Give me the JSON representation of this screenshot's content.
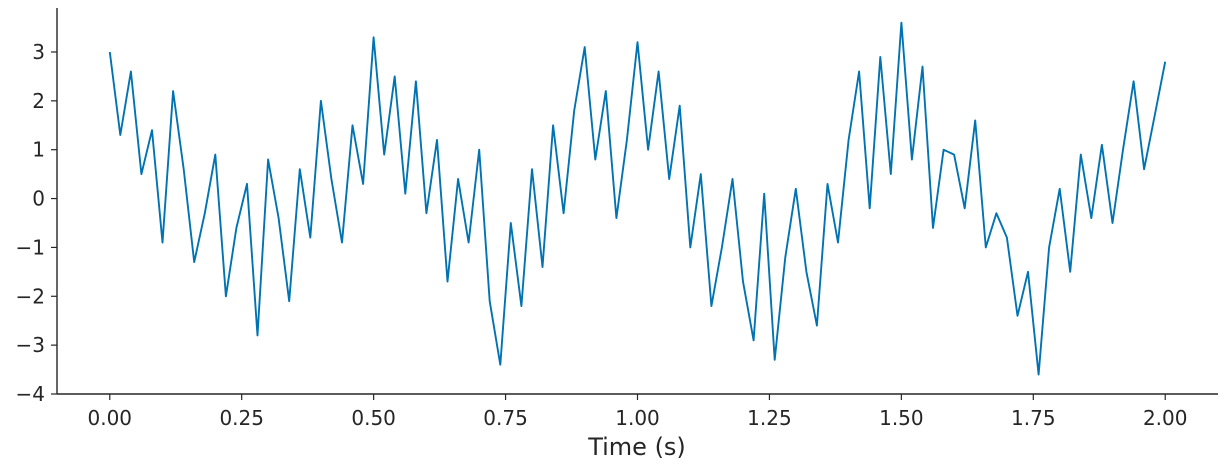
{
  "chart_data": {
    "type": "line",
    "title": "",
    "xlabel": "Time (s)",
    "ylabel": "",
    "xlim": [
      -0.1,
      2.1
    ],
    "ylim": [
      -4,
      3.9
    ],
    "xticks": [
      0.0,
      0.25,
      0.5,
      0.75,
      1.0,
      1.25,
      1.5,
      1.75,
      2.0
    ],
    "xtick_labels": [
      "0.00",
      "0.25",
      "0.50",
      "0.75",
      "1.00",
      "1.25",
      "1.50",
      "1.75",
      "2.00"
    ],
    "yticks": [
      -4,
      -3,
      -2,
      -1,
      0,
      1,
      2,
      3
    ],
    "ytick_labels": [
      "−4",
      "−3",
      "−2",
      "−1",
      "0",
      "1",
      "2",
      "3"
    ],
    "grid": false,
    "legend": "none",
    "series": [
      {
        "color": "#0173b2",
        "x": [
          0.0,
          0.02,
          0.04,
          0.06,
          0.08,
          0.1,
          0.12,
          0.14,
          0.16,
          0.18,
          0.2,
          0.22,
          0.24,
          0.26,
          0.28,
          0.3,
          0.32,
          0.34,
          0.36,
          0.38,
          0.4,
          0.42,
          0.44,
          0.46,
          0.48,
          0.5,
          0.52,
          0.54,
          0.56,
          0.58,
          0.6,
          0.62,
          0.64,
          0.66,
          0.68,
          0.7,
          0.72,
          0.74,
          0.76,
          0.78,
          0.8,
          0.82,
          0.84,
          0.86,
          0.88,
          0.9,
          0.92,
          0.94,
          0.96,
          0.98,
          1.0,
          1.02,
          1.04,
          1.06,
          1.08,
          1.1,
          1.12,
          1.14,
          1.16,
          1.18,
          1.2,
          1.22,
          1.24,
          1.26,
          1.28,
          1.3,
          1.32,
          1.34,
          1.36,
          1.38,
          1.4,
          1.42,
          1.44,
          1.46,
          1.48,
          1.5,
          1.52,
          1.54,
          1.56,
          1.58,
          1.6,
          1.62,
          1.64,
          1.66,
          1.68,
          1.7,
          1.72,
          1.74,
          1.76,
          1.78,
          1.8,
          1.82,
          1.84,
          1.86,
          1.88,
          1.9,
          1.92,
          1.94,
          1.96,
          1.98,
          2.0
        ],
        "y": [
          3.0,
          1.3,
          2.6,
          0.5,
          1.4,
          -0.9,
          2.2,
          0.6,
          -1.3,
          -0.3,
          0.9,
          -2.0,
          -0.6,
          0.3,
          -2.8,
          0.8,
          -0.4,
          -2.1,
          0.6,
          -0.8,
          2.0,
          0.4,
          -0.9,
          1.5,
          0.3,
          3.3,
          0.9,
          2.5,
          0.1,
          2.4,
          -0.3,
          1.2,
          -1.7,
          0.4,
          -0.9,
          1.0,
          -2.1,
          -3.4,
          -0.5,
          -2.2,
          0.6,
          -1.4,
          1.5,
          -0.3,
          1.8,
          3.1,
          0.8,
          2.2,
          -0.4,
          1.2,
          3.2,
          1.0,
          2.6,
          0.4,
          1.9,
          -1.0,
          0.5,
          -2.2,
          -1.0,
          0.4,
          -1.7,
          -2.9,
          0.1,
          -3.3,
          -1.2,
          0.2,
          -1.5,
          -2.6,
          0.3,
          -0.9,
          1.2,
          2.6,
          -0.2,
          2.9,
          0.5,
          3.6,
          0.8,
          2.7,
          -0.6,
          1.0,
          0.9,
          -0.2,
          1.6,
          -1.0,
          -0.3,
          -0.8,
          -2.4,
          -1.5,
          -3.6,
          -1.0,
          0.2,
          -1.5,
          0.9,
          -0.4,
          1.1,
          -0.5,
          1.0,
          2.4,
          0.6,
          1.7,
          2.8
        ]
      }
    ]
  }
}
